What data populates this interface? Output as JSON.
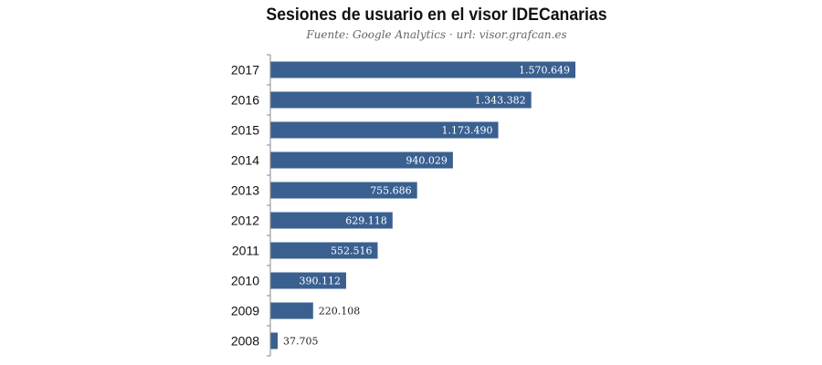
{
  "chart_data": {
    "type": "bar",
    "orientation": "horizontal",
    "title": "Sesiones de usuario en el visor IDECanarias",
    "subtitle": "Fuente: Google Analytics · url: visor.grafcan.es",
    "xlabel": "",
    "ylabel": "",
    "categories": [
      "2017",
      "2016",
      "2015",
      "2014",
      "2013",
      "2012",
      "2011",
      "2010",
      "2009",
      "2008"
    ],
    "values": [
      1570649,
      1343382,
      1173490,
      940029,
      755686,
      629118,
      552516,
      390112,
      220108,
      37705
    ],
    "data_labels": [
      "1.570.649",
      "1.343.382",
      "1.173.490",
      "940.029",
      "755.686",
      "629.118",
      "552.516",
      "390.112",
      "220.108",
      "37.705"
    ],
    "xlim": [
      0,
      1600000
    ],
    "grid": false,
    "legend": "none",
    "bar_color": "#3a6090",
    "label_color_inside": "#ffffff",
    "label_color_outside": "#222222"
  }
}
